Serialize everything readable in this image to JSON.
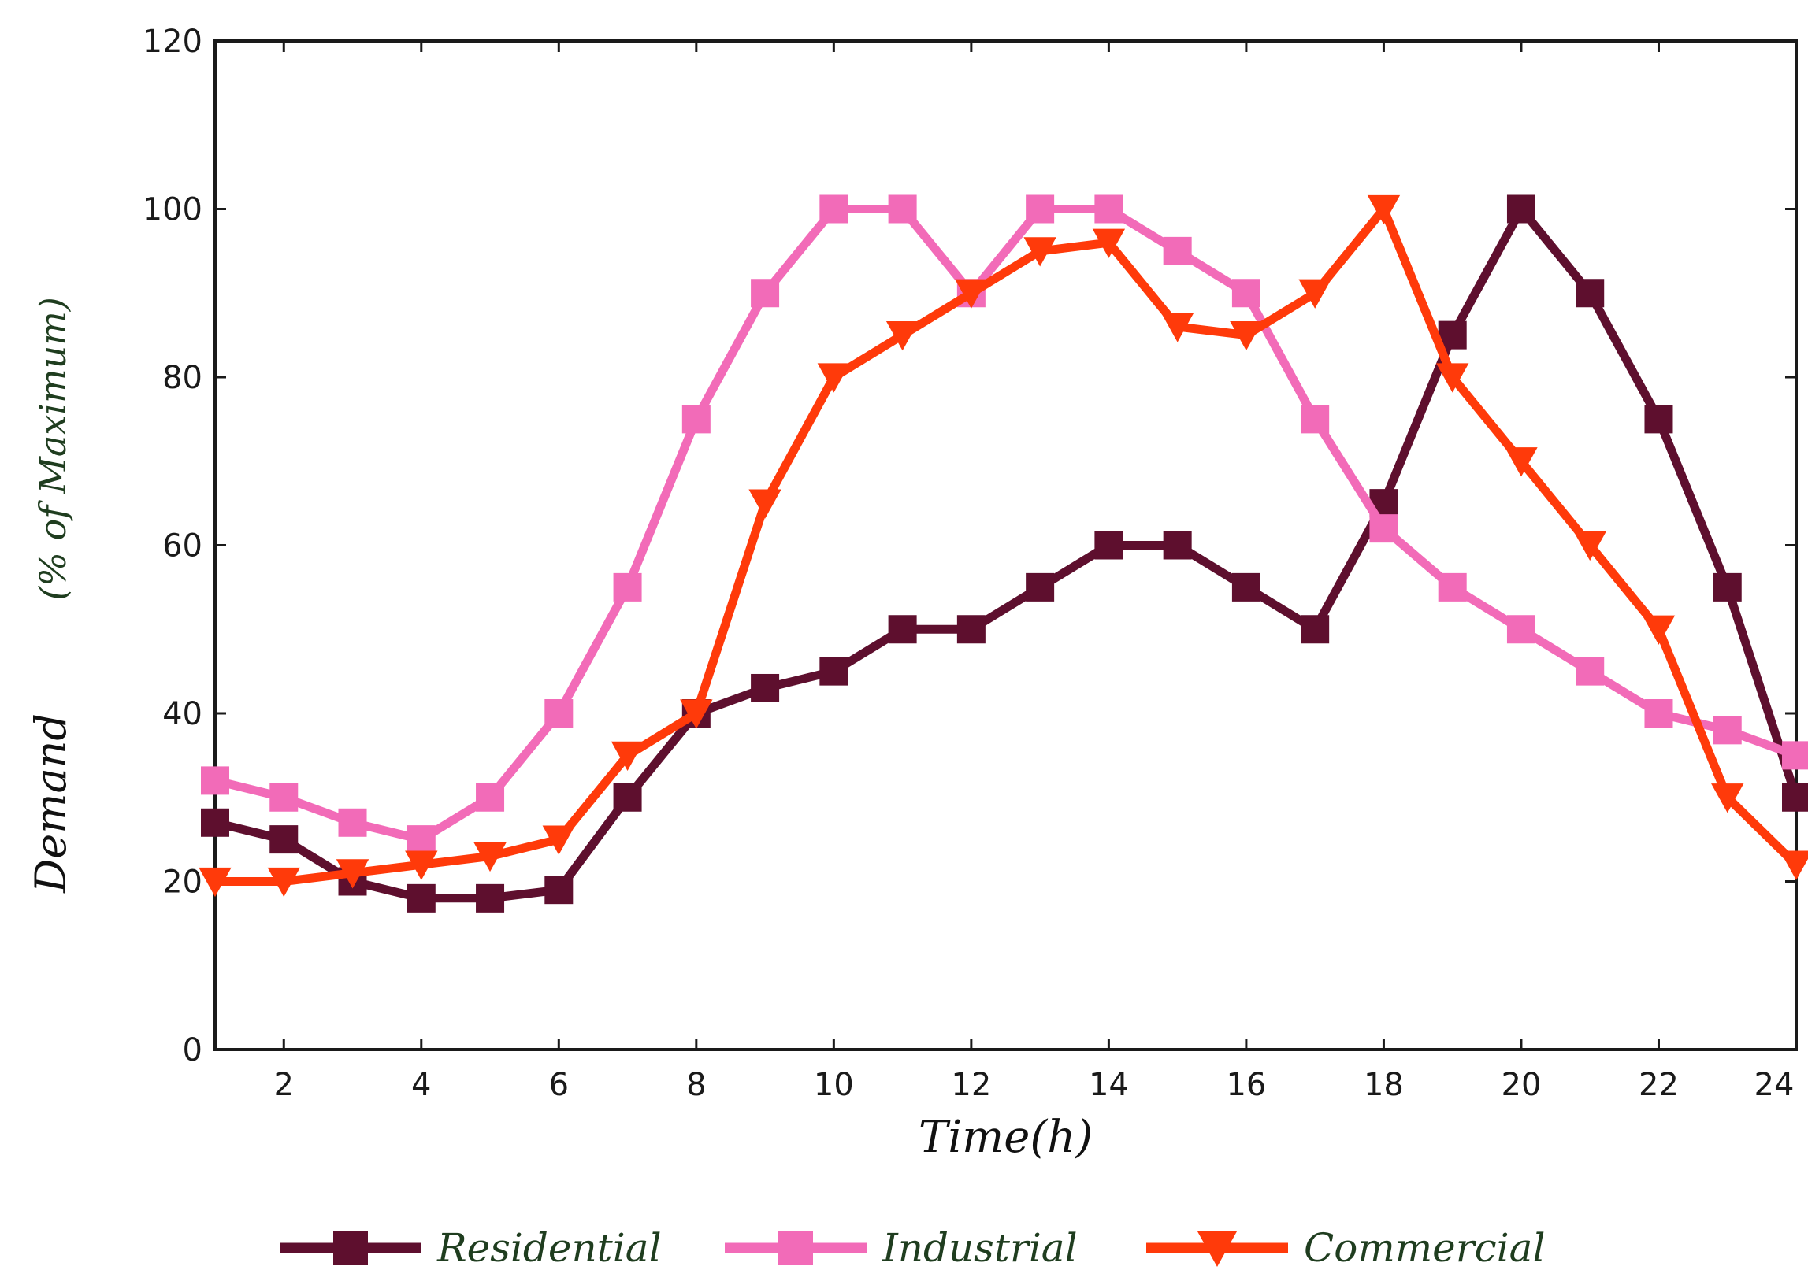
{
  "chart_data": {
    "type": "line",
    "title": "",
    "xlabel": "Time(h)",
    "ylabel_parts": [
      "Demand",
      "(% of Maximum)"
    ],
    "x": [
      1,
      2,
      3,
      4,
      5,
      6,
      7,
      8,
      9,
      10,
      11,
      12,
      13,
      14,
      15,
      16,
      17,
      18,
      19,
      20,
      21,
      22,
      23,
      24
    ],
    "xlim": [
      1,
      24
    ],
    "ylim": [
      0,
      120
    ],
    "xticks": [
      2,
      4,
      6,
      8,
      10,
      12,
      14,
      16,
      18,
      20,
      22,
      24
    ],
    "xtick_labels": [
      "2",
      "4",
      "6",
      "8",
      "10",
      "12",
      "14",
      "16",
      "18",
      "20",
      "22",
      "24"
    ],
    "yticks": [
      0,
      20,
      40,
      60,
      80,
      100,
      120
    ],
    "ytick_labels": [
      "0",
      "20",
      "40",
      "60",
      "80",
      "100",
      "120"
    ],
    "grid": false,
    "legend_position": "bottom-center",
    "series": [
      {
        "name": "Residential",
        "color": "#5e0f2e",
        "marker": "square",
        "values": [
          27,
          25,
          20,
          18,
          18,
          19,
          30,
          40,
          43,
          45,
          50,
          50,
          55,
          60,
          60,
          55,
          50,
          65,
          85,
          100,
          90,
          75,
          55,
          30
        ]
      },
      {
        "name": "Industrial",
        "color": "#f26bb8",
        "marker": "square",
        "values": [
          32,
          30,
          27,
          25,
          30,
          40,
          55,
          75,
          90,
          100,
          100,
          90,
          100,
          100,
          95,
          90,
          75,
          62,
          55,
          50,
          45,
          40,
          38,
          35
        ]
      },
      {
        "name": "Commercial",
        "color": "#ff3a0a",
        "marker": "triangle-down",
        "values": [
          20,
          20,
          21,
          22,
          23,
          25,
          35,
          40,
          65,
          80,
          85,
          90,
          95,
          96,
          86,
          85,
          90,
          100,
          80,
          70,
          60,
          50,
          30,
          22
        ]
      }
    ]
  }
}
